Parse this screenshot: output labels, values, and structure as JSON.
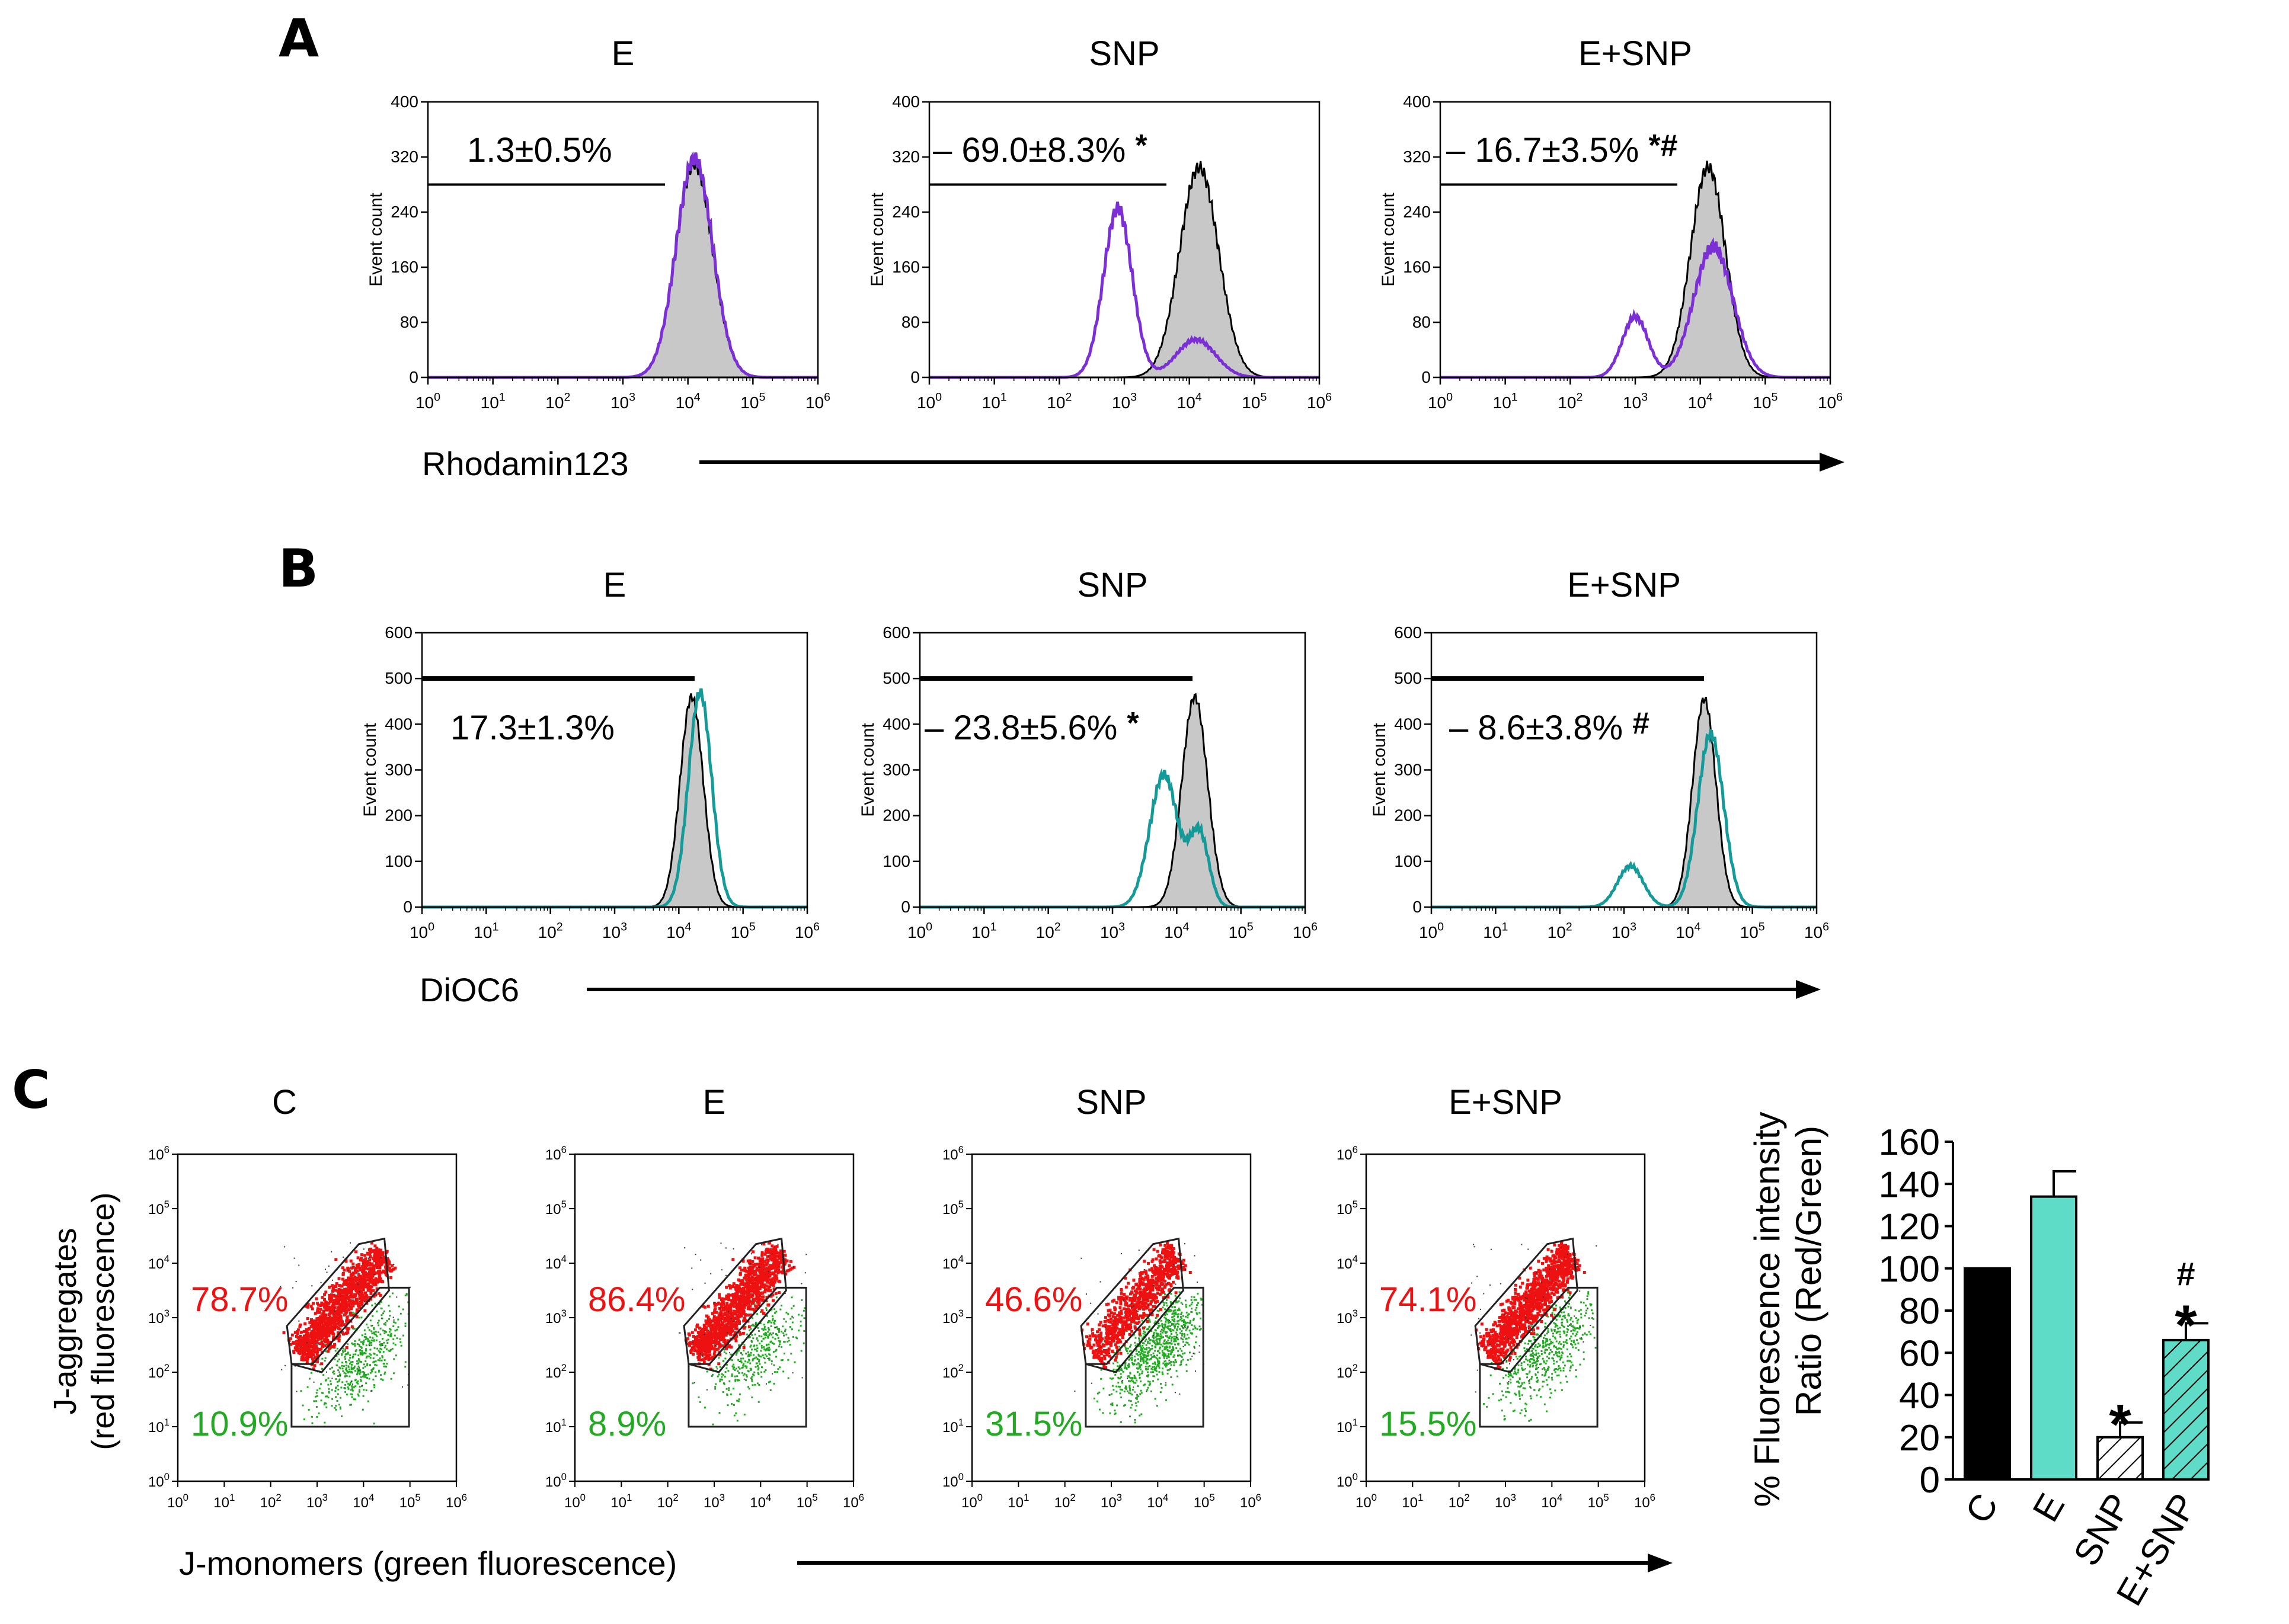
{
  "panel_letters": {
    "a": "A",
    "b": "B",
    "c": "C"
  },
  "colors": {
    "purple": "#7B2FD4",
    "teal": "#159A9A",
    "control_fill": "#C8C8C8",
    "red": "#EE1111",
    "green": "#22AA22",
    "teal_bar": "#5FDCC8"
  },
  "chart_data": [
    {
      "type": "histogram-overlay",
      "panel": "A",
      "marker": "Rhodamin123",
      "ylabel": "Event count",
      "yticks": [
        "0",
        "80",
        "160",
        "240",
        "320",
        "400"
      ],
      "ylim": [
        0,
        400
      ],
      "xticks": [
        "10^0",
        "10^1",
        "10^2",
        "10^3",
        "10^4",
        "10^5",
        "10^6"
      ],
      "xscale": "log",
      "xlim": [
        0,
        6
      ],
      "titles": [
        "E",
        "SNP",
        "E+SNP"
      ],
      "annotations": [
        "1.3±0.5%",
        "– 69.0±8.3%",
        "– 16.7±3.5%"
      ],
      "marks": [
        "",
        "*",
        "*#"
      ],
      "series_legend": [
        "control (filled gray)",
        "treated (purple line)"
      ],
      "peaks": [
        {
          "control": [
            [
              4.1,
              310,
              0.28
            ]
          ],
          "treated": [
            [
              4.1,
              318,
              0.28
            ]
          ]
        },
        {
          "control": [
            [
              4.15,
              305,
              0.3
            ]
          ],
          "treated": [
            [
              2.9,
              245,
              0.22
            ],
            [
              4.1,
              55,
              0.3
            ]
          ]
        },
        {
          "control": [
            [
              4.12,
              305,
              0.27
            ]
          ],
          "treated": [
            [
              3.0,
              88,
              0.2
            ],
            [
              4.2,
              190,
              0.3
            ]
          ]
        }
      ]
    },
    {
      "type": "histogram-overlay",
      "panel": "B",
      "marker": "DiOC6",
      "ylabel": "Event count",
      "yticks": [
        "0",
        "100",
        "200",
        "300",
        "400",
        "500",
        "600"
      ],
      "ylim": [
        0,
        600
      ],
      "xticks": [
        "10^0",
        "10^1",
        "10^2",
        "10^3",
        "10^4",
        "10^5",
        "10^6"
      ],
      "xscale": "log",
      "xlim": [
        0,
        6
      ],
      "titles": [
        "E",
        "SNP",
        "E+SNP"
      ],
      "annotations": [
        "17.3±1.3%",
        "– 23.8±5.6%",
        "– 8.6±3.8%"
      ],
      "marks": [
        "",
        "*",
        "#"
      ],
      "series_legend": [
        "control (filled gray)",
        "treated (teal line)"
      ],
      "peaks": [
        {
          "control": [
            [
              4.2,
              460,
              0.18
            ]
          ],
          "treated": [
            [
              4.33,
              470,
              0.18
            ]
          ]
        },
        {
          "control": [
            [
              4.28,
              460,
              0.2
            ]
          ],
          "treated": [
            [
              3.8,
              290,
              0.22
            ],
            [
              4.35,
              160,
              0.15
            ]
          ]
        },
        {
          "control": [
            [
              4.25,
              455,
              0.18
            ]
          ],
          "treated": [
            [
              3.1,
              90,
              0.2
            ],
            [
              4.35,
              380,
              0.2
            ]
          ]
        }
      ]
    },
    {
      "type": "scatter-density",
      "panel": "C",
      "xlabel": "J-monomers (green fluorescence)",
      "ylabel_line1": "J-aggregates",
      "ylabel_line2": "(red fluorescence)",
      "xticks": [
        "10^0",
        "10^1",
        "10^2",
        "10^3",
        "10^4",
        "10^5",
        "10^6"
      ],
      "yticks": [
        "10^0",
        "10^1",
        "10^2",
        "10^3",
        "10^4",
        "10^5",
        "10^6"
      ],
      "titles": [
        "C",
        "E",
        "SNP",
        "E+SNP"
      ],
      "red_pct": [
        "78.7%",
        "86.4%",
        "46.6%",
        "74.1%"
      ],
      "green_pct": [
        "10.9%",
        "8.9%",
        "31.5%",
        "15.5%"
      ],
      "gates": {
        "red": [
          [
            2.45,
            2.15
          ],
          [
            3.1,
            2.0
          ],
          [
            4.55,
            3.5
          ],
          [
            4.45,
            4.45
          ],
          [
            3.9,
            4.35
          ],
          [
            2.35,
            2.85
          ]
        ],
        "green": [
          [
            2.45,
            1.0
          ],
          [
            4.98,
            1.0
          ],
          [
            4.98,
            3.55
          ],
          [
            4.35,
            3.55
          ],
          [
            2.9,
            2.15
          ],
          [
            2.45,
            2.15
          ]
        ]
      }
    },
    {
      "type": "bar",
      "categories": [
        "C",
        "E",
        "SNP",
        "E+SNP"
      ],
      "values": [
        100,
        134,
        20,
        66
      ],
      "errors": [
        0,
        12,
        7,
        8
      ],
      "marks": [
        "",
        "",
        "*",
        "*#"
      ],
      "ylabel_line1": "% Fluorescence intensity",
      "ylabel_line2": "Ratio (Red/Green)",
      "ylim": [
        0,
        160
      ],
      "yticks": [
        "0",
        "20",
        "40",
        "60",
        "80",
        "100",
        "120",
        "140",
        "160"
      ],
      "bar_styles": [
        "solid-black",
        "solid-teal",
        "hatched-white",
        "hatched-teal"
      ]
    }
  ]
}
